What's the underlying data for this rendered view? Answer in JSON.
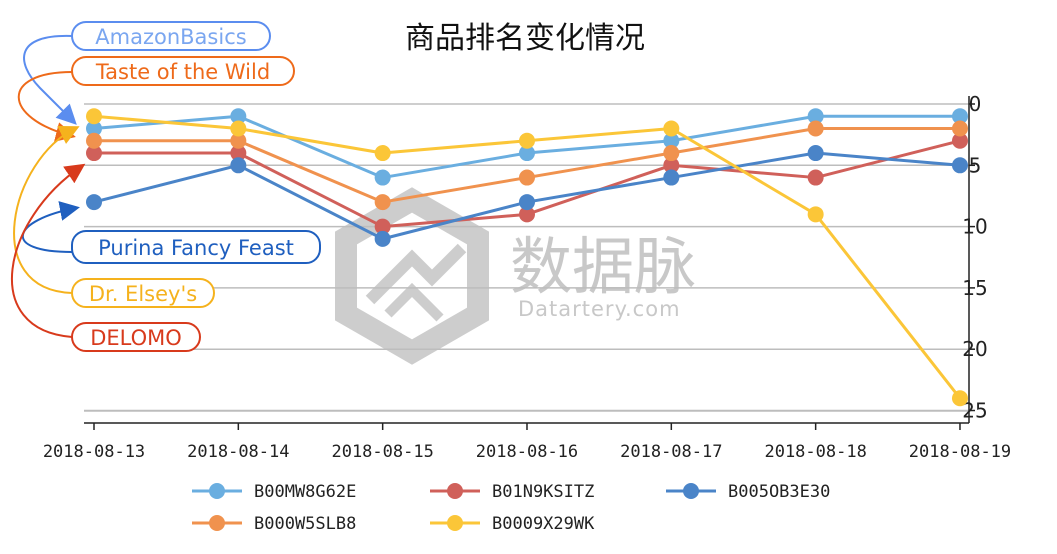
{
  "chart_data": {
    "type": "line",
    "title": "商品排名变化情况",
    "categories": [
      "2018-08-13",
      "2018-08-14",
      "2018-08-15",
      "2018-08-16",
      "2018-08-17",
      "2018-08-18",
      "2018-08-19"
    ],
    "y_ticks": [
      "0",
      "5",
      "10",
      "15",
      "20",
      "25"
    ],
    "ylim": [
      0,
      25
    ],
    "y_inverted": true,
    "y_axis_side": "right",
    "grid": "horizontal",
    "legend_position": "bottom",
    "series": [
      {
        "name": "B00MW8G62E",
        "color": "#6aaee0",
        "values": [
          2,
          1,
          6,
          4,
          3,
          1,
          1
        ]
      },
      {
        "name": "B01N9KSITZ",
        "color": "#d0605a",
        "values": [
          4,
          4,
          10,
          9,
          5,
          6,
          3
        ]
      },
      {
        "name": "B005OB3E30",
        "color": "#4a84c8",
        "values": [
          8,
          5,
          11,
          8,
          6,
          4,
          5
        ]
      },
      {
        "name": "B000W5SLB8",
        "color": "#f0924e",
        "values": [
          3,
          3,
          8,
          6,
          4,
          2,
          2
        ]
      },
      {
        "name": "B0009X29WK",
        "color": "#fbc638",
        "values": [
          1,
          2,
          4,
          3,
          2,
          9,
          24
        ]
      }
    ],
    "annotations": [
      {
        "label": "AmazonBasics",
        "color": "#5b8def",
        "target_series": "B00MW8G62E"
      },
      {
        "label": "Taste of the Wild",
        "color": "#ee6a1a",
        "target_series": "B000W5SLB8"
      },
      {
        "label": "Purina Fancy Feast",
        "color": "#1f5fbf",
        "target_series": "B005OB3E30"
      },
      {
        "label": "Dr. Elsey's",
        "color": "#f5b21d",
        "target_series": "B0009X29WK"
      },
      {
        "label": "DELOMO",
        "color": "#d83a1c",
        "target_series": "B01N9KSITZ"
      }
    ]
  },
  "watermark": {
    "text_cn": "数据脉",
    "text_en": "Datartery.com"
  }
}
